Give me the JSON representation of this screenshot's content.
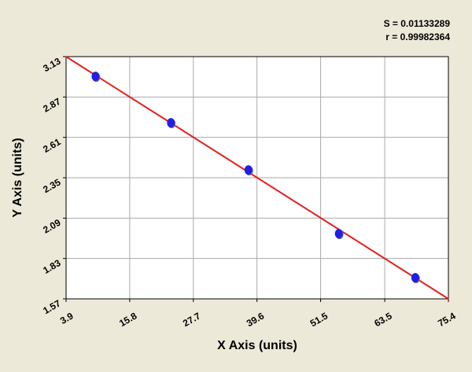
{
  "chart_data": {
    "type": "scatter",
    "xlabel": "X Axis (units)",
    "ylabel": "Y Axis (units)",
    "annotations": [
      "S = 0.01133289",
      "r = 0.99982364"
    ],
    "x": [
      9.4,
      23.5,
      38.0,
      54.9,
      69.2
    ],
    "values": [
      3.003,
      2.704,
      2.4,
      1.99,
      1.706
    ],
    "color": "#1f1fe8",
    "fit": {
      "x": [
        3.9,
        75.4
      ],
      "y": [
        3.13,
        1.57
      ],
      "color": "#e41e1e"
    },
    "xlim": [
      3.9,
      75.4
    ],
    "xticks": [
      3.9,
      15.8,
      27.7,
      39.6,
      51.5,
      63.5,
      75.4
    ],
    "ylim": [
      1.57,
      3.13
    ],
    "yticks": [
      1.57,
      1.83,
      2.09,
      2.35,
      2.61,
      2.87,
      3.13
    ],
    "grid": true
  }
}
